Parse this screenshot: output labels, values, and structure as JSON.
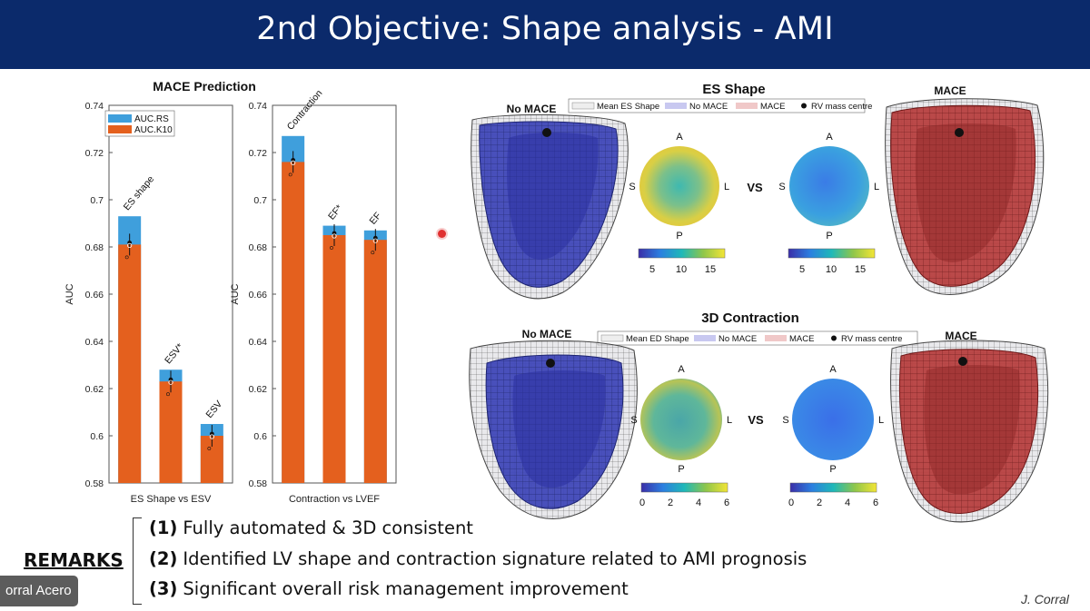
{
  "slide": {
    "title": "2nd Objective: Shape analysis - AMI",
    "speaker_tag": "orral Acero",
    "author": "J. Corral"
  },
  "chart_data": {
    "type": "bar",
    "title": "MACE Prediction",
    "ylabel": "AUC",
    "ylim": [
      0.58,
      0.74
    ],
    "yticks": [
      "0.58",
      "0.6",
      "0.62",
      "0.64",
      "0.66",
      "0.68",
      "0.7",
      "0.72",
      "0.74"
    ],
    "legend": {
      "placement": "top-left",
      "entries": [
        "AUC.RS",
        "AUC.K10"
      ]
    },
    "colors": {
      "AUC.RS": "#3f9fdc",
      "AUC.K10": "#e4601e"
    },
    "panels": [
      {
        "xlabel": "ES Shape vs ESV",
        "categories": [
          "ES shape",
          "ESV*",
          "ESV"
        ],
        "series": [
          {
            "name": "AUC.RS",
            "values": [
              0.693,
              0.628,
              0.605
            ]
          },
          {
            "name": "AUC.K10",
            "values": [
              0.681,
              0.623,
              0.6
            ]
          }
        ]
      },
      {
        "xlabel": "Contraction vs LVEF",
        "categories": [
          "Contraction",
          "EF*",
          "EF"
        ],
        "series": [
          {
            "name": "AUC.RS",
            "values": [
              0.727,
              0.689,
              0.687
            ]
          },
          {
            "name": "AUC.K10",
            "values": [
              0.716,
              0.685,
              0.683
            ]
          }
        ]
      }
    ]
  },
  "es_shape": {
    "title": "ES Shape",
    "legend": [
      "Mean ES Shape",
      "No MACE",
      "MACE",
      "RV mass centre"
    ],
    "left_label": "No MACE",
    "right_label": "MACE",
    "vs": "VS",
    "directions": {
      "a": "A",
      "s": "S",
      "l": "L",
      "p": "P"
    },
    "colorbar_ticks": [
      "5",
      "10",
      "15"
    ]
  },
  "contraction": {
    "title": "3D Contraction",
    "legend": [
      "Mean ED Shape",
      "No MACE",
      "MACE",
      "RV mass centre"
    ],
    "left_label": "No MACE",
    "right_label": "MACE",
    "vs": "VS",
    "directions": {
      "a": "A",
      "s": "S",
      "l": "L",
      "p": "P"
    },
    "colorbar_ticks": [
      "0",
      "2",
      "4",
      "6"
    ]
  },
  "remarks": {
    "label": "REMARKS",
    "items": [
      {
        "num": "(1)",
        "text": "Fully automated & 3D consistent"
      },
      {
        "num": "(2)",
        "text": "Identified LV shape and contraction signature related to AMI prognosis"
      },
      {
        "num": "(3)",
        "text": "Significant overall risk management improvement"
      }
    ]
  },
  "palette": {
    "title_bar": "#0b2a6b",
    "no_mace": "#3f47b8",
    "mace": "#b8403f",
    "polar_low": "#3f6ee0",
    "polar_high": "#e8d53a"
  }
}
